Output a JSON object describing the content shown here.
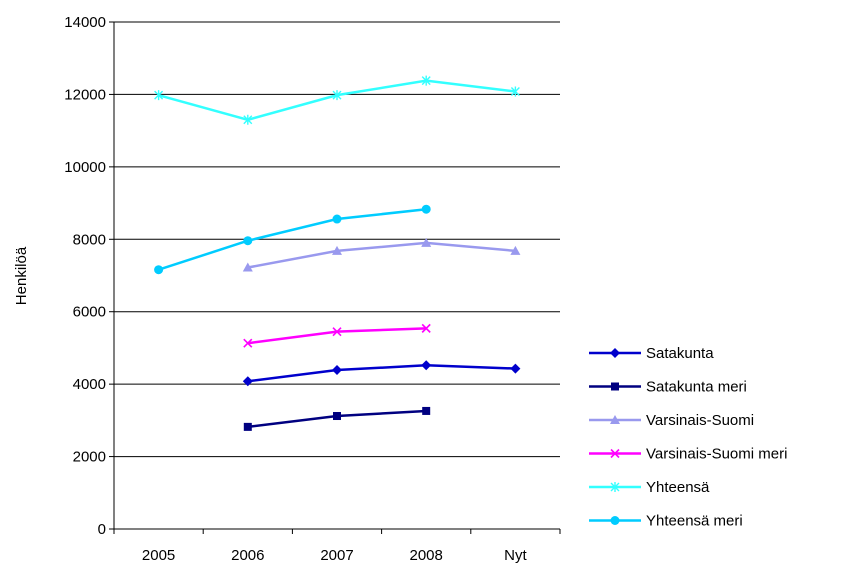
{
  "chart_data": {
    "type": "line",
    "title": "",
    "xlabel": "",
    "ylabel": "Henkilöä",
    "categories": [
      "2005",
      "2006",
      "2007",
      "2008",
      "Nyt"
    ],
    "ylim": [
      0,
      14000
    ],
    "yticks": [
      0,
      2000,
      4000,
      6000,
      8000,
      10000,
      12000,
      14000
    ],
    "grid": true,
    "legend_position": "right",
    "series": [
      {
        "name": "Satakunta",
        "color": "#0000cc",
        "marker": "diamond",
        "values": [
          null,
          4080,
          4390,
          4520,
          4430
        ]
      },
      {
        "name": "Satakunta meri",
        "color": "#000080",
        "marker": "square",
        "values": [
          null,
          2820,
          3120,
          3260,
          null
        ]
      },
      {
        "name": "Varsinais-Suomi",
        "color": "#9999ee",
        "marker": "triangle",
        "values": [
          null,
          7220,
          7680,
          7900,
          7680
        ]
      },
      {
        "name": "Varsinais-Suomi meri",
        "color": "#ff00ff",
        "marker": "x",
        "values": [
          null,
          5130,
          5450,
          5540,
          null
        ]
      },
      {
        "name": "Yhteensä",
        "color": "#33ffff",
        "marker": "star",
        "values": [
          11980,
          11300,
          11980,
          12380,
          12080
        ]
      },
      {
        "name": "Yhteensä meri",
        "color": "#00ccff",
        "marker": "circle",
        "values": [
          7160,
          7960,
          8560,
          8830,
          null
        ]
      }
    ]
  }
}
